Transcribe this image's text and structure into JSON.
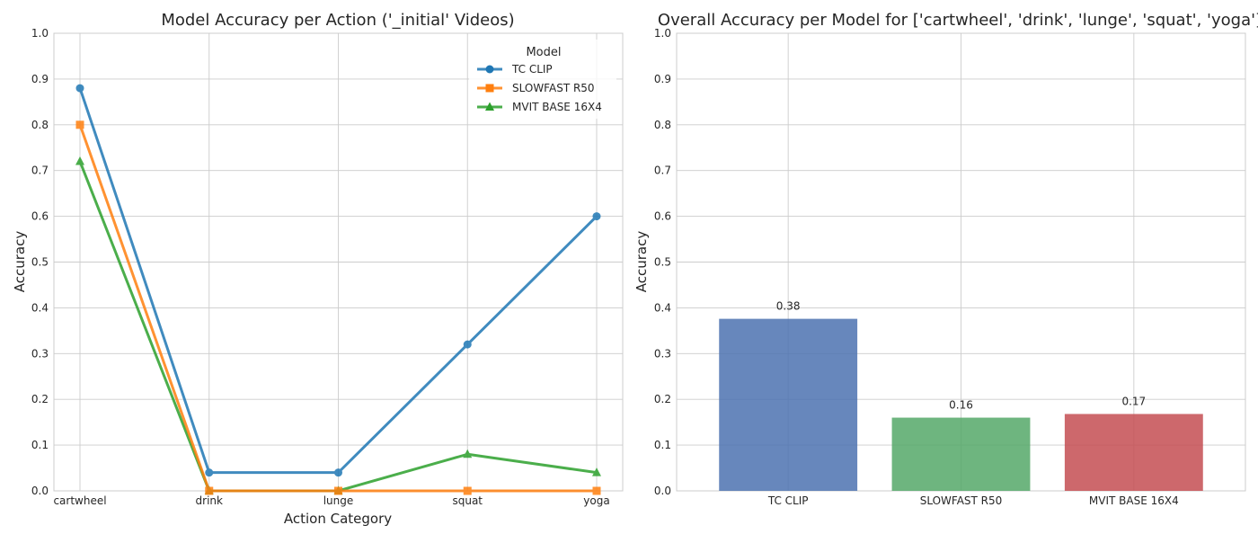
{
  "chart_data": [
    {
      "type": "line",
      "title": "Model Accuracy per Action ('_initial' Videos)",
      "xlabel": "Action Category",
      "ylabel": "Accuracy",
      "categories": [
        "cartwheel",
        "drink",
        "lunge",
        "squat",
        "yoga"
      ],
      "ylim": [
        0,
        1.0
      ],
      "yticks": [
        "0.0",
        "0.1",
        "0.2",
        "0.3",
        "0.4",
        "0.5",
        "0.6",
        "0.7",
        "0.8",
        "0.9",
        "1.0"
      ],
      "grid": true,
      "legend": {
        "title": "Model",
        "placement": "top-right"
      },
      "series": [
        {
          "name": "TC CLIP",
          "marker": "circle",
          "color": "#1f77b4",
          "values": [
            0.88,
            0.04,
            0.04,
            0.32,
            0.6
          ]
        },
        {
          "name": "SLOWFAST R50",
          "marker": "square",
          "color": "#ff7f0e",
          "values": [
            0.8,
            0.0,
            0.0,
            0.0,
            0.0
          ]
        },
        {
          "name": "MVIT BASE 16X4",
          "marker": "triangle",
          "color": "#2ca02c",
          "values": [
            0.72,
            0.0,
            0.0,
            0.08,
            0.04
          ]
        }
      ]
    },
    {
      "type": "bar",
      "title": "Overall Accuracy per Model for ['cartwheel', 'drink', 'lunge', 'squat', 'yoga']",
      "xlabel": "",
      "ylabel": "Accuracy",
      "categories": [
        "TC CLIP",
        "SLOWFAST R50",
        "MVIT BASE 16X4"
      ],
      "values": [
        0.376,
        0.16,
        0.168
      ],
      "data_labels": [
        "0.38",
        "0.16",
        "0.17"
      ],
      "colors": [
        "#4c72b0",
        "#55a868",
        "#c44e52"
      ],
      "ylim": [
        0,
        1.0
      ],
      "yticks": [
        "0.0",
        "0.1",
        "0.2",
        "0.3",
        "0.4",
        "0.5",
        "0.6",
        "0.7",
        "0.8",
        "0.9",
        "1.0"
      ],
      "grid": true
    }
  ]
}
